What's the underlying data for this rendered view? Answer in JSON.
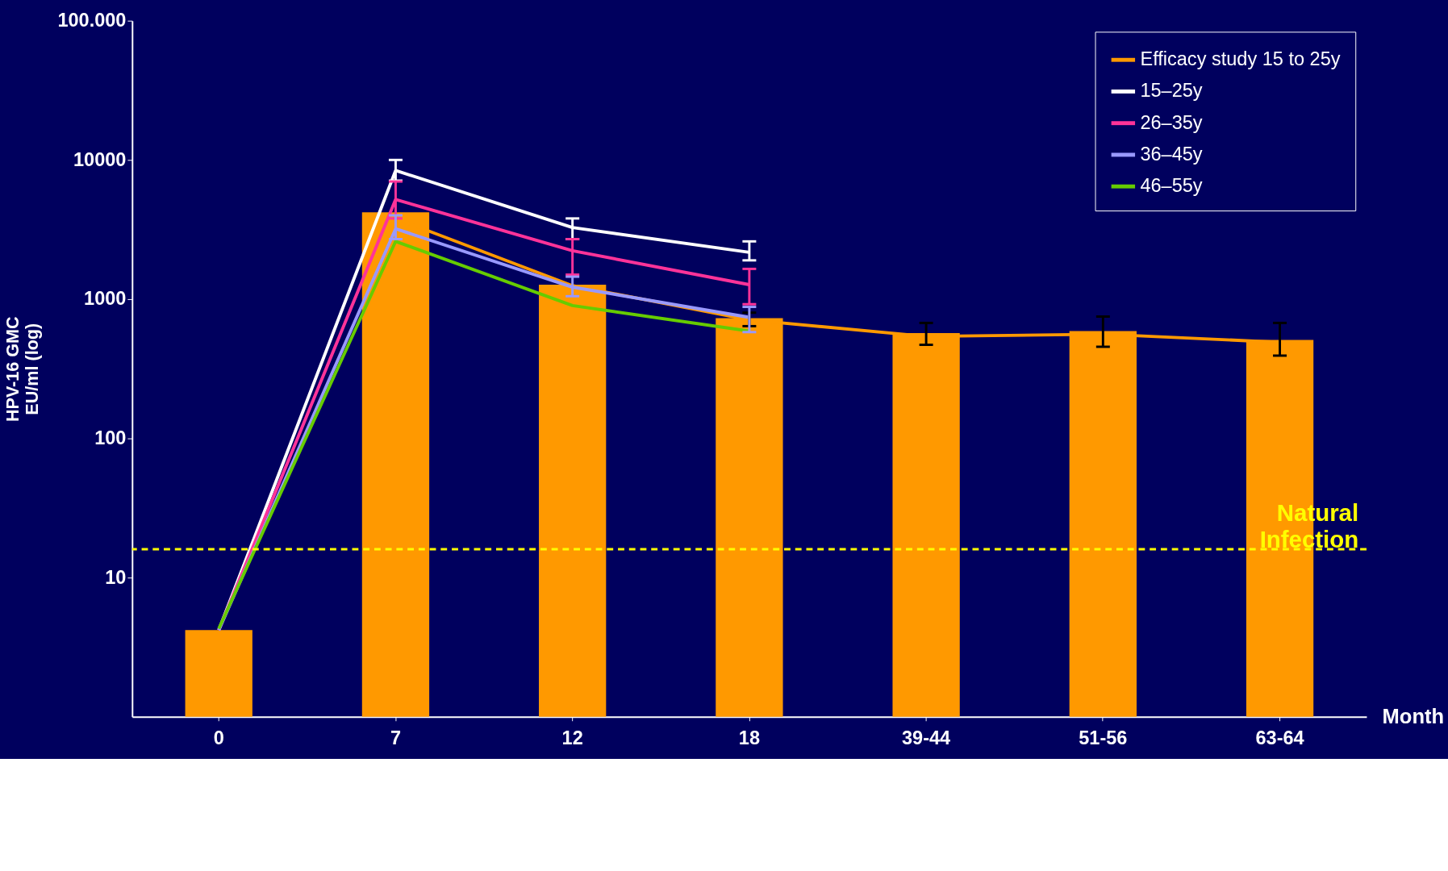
{
  "chart_data": {
    "type": "bar",
    "ylabel": "HPV-16 GMC\nEU/ml (log)",
    "xlabel": "Month",
    "categories": [
      "0",
      "7",
      "12",
      "18",
      "39-44",
      "51-56",
      "63-64"
    ],
    "log": "y",
    "ylim": [
      1,
      100000
    ],
    "yticks": [
      10,
      100,
      1000,
      10000,
      {
        "value": 100000,
        "label": "100.000"
      }
    ],
    "grid": false,
    "legend": "top right",
    "line_style": "solid",
    "marker": "none",
    "series": [
      {
        "color": "#ff9900",
        "values": [
          4.2,
          4200,
          1270,
          730,
          570,
          590,
          510
        ]
      },
      {
        "type": "line",
        "name": "Efficacy study 15 to 25y",
        "color": "#ff9900",
        "values": [
          null,
          3800,
          1250,
          710,
          540,
          560,
          490
        ],
        "errors": [
          null,
          null,
          null,
          [
            640,
            800
          ],
          [
            470,
            675
          ],
          [
            455,
            750
          ],
          [
            393,
            675
          ]
        ]
      },
      {
        "type": "line",
        "name": "15–25y",
        "color": "#ffffff",
        "values": [
          4.2,
          8400,
          3270,
          2170,
          null,
          null,
          null
        ],
        "errors": [
          null,
          [
            7100,
            10000
          ],
          [
            2700,
            3800
          ],
          [
            1900,
            2600
          ],
          null,
          null,
          null
        ]
      },
      {
        "type": "line",
        "name": "26–35y",
        "color": "#ff3399",
        "values": [
          4.2,
          5200,
          2230,
          1270,
          null,
          null,
          null
        ],
        "errors": [
          null,
          [
            3800,
            7000
          ],
          [
            1500,
            2700
          ],
          [
            920,
            1650
          ],
          null,
          null,
          null
        ]
      },
      {
        "type": "line",
        "name": "36–45y",
        "color": "#9999ff",
        "values": [
          4.2,
          3200,
          1220,
          740,
          null,
          null,
          null
        ],
        "errors": [
          null,
          [
            2700,
            4000
          ],
          [
            1050,
            1450
          ],
          [
            580,
            880
          ],
          null,
          null,
          null
        ]
      },
      {
        "type": "line",
        "name": "46–55y",
        "color": "#66cc00",
        "values": [
          4.3,
          2600,
          900,
          590,
          null,
          null,
          null
        ]
      }
    ],
    "ref_lines": [
      {
        "axis": "y",
        "value": 16,
        "label": "Natural\nInfection",
        "color": "#ffff00",
        "line_style": "dashed"
      }
    ]
  }
}
